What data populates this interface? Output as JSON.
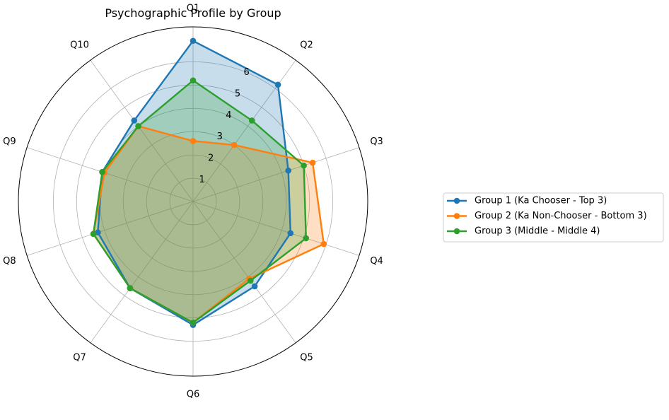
{
  "chart_data": {
    "type": "radar",
    "title": "Psychographic Profile by Group",
    "categories": [
      "Q1",
      "Q2",
      "Q3",
      "Q4",
      "Q5",
      "Q6",
      "Q7",
      "Q8",
      "Q9",
      "Q10"
    ],
    "rlim": [
      0,
      7.5
    ],
    "r_ticks": [
      "1",
      "2",
      "3",
      "4",
      "5",
      "6"
    ],
    "grid": true,
    "legend_position": "right",
    "series": [
      {
        "name": "Group 1 (Ka Chooser - Top 3)",
        "color": "#1f77b4",
        "values": [
          6.9,
          6.2,
          4.3,
          4.4,
          4.5,
          5.3,
          4.6,
          4.3,
          4.1,
          4.3
        ]
      },
      {
        "name": "Group 2 (Ka Non-Chooser - Bottom 3)",
        "color": "#ff7f0e",
        "values": [
          2.6,
          3.0,
          5.4,
          5.9,
          4.1,
          5.2,
          4.6,
          4.5,
          4.0,
          4.0
        ]
      },
      {
        "name": "Group 3 (Middle - Middle 4)",
        "color": "#2ca02c",
        "values": [
          5.2,
          4.3,
          5.0,
          5.1,
          4.2,
          5.2,
          4.6,
          4.5,
          4.1,
          4.0
        ]
      }
    ]
  }
}
